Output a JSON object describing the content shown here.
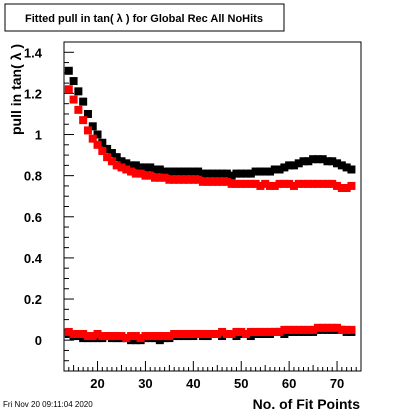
{
  "chart_data": {
    "type": "scatter",
    "title": "Fitted pull in tan( λ ) for Global Rec All NoHits",
    "xlabel": "No. of Fit Points",
    "ylabel": "pull in tan( λ )",
    "xlim": [
      13,
      75
    ],
    "ylim": [
      -0.15,
      1.45
    ],
    "xticks": [
      "20",
      "30",
      "40",
      "50",
      "60",
      "70"
    ],
    "yticks": [
      "0",
      "0.2",
      "0.4",
      "0.6",
      "0.8",
      "1",
      "1.2",
      "1.4"
    ],
    "timestamp": "Fri Nov 20 09:11:04 2020",
    "series": [
      {
        "color": "#000000",
        "x": [
          14,
          15,
          16,
          17,
          18,
          19,
          20,
          21,
          22,
          23,
          24,
          25,
          26,
          27,
          28,
          29,
          30,
          31,
          32,
          33,
          34,
          35,
          36,
          37,
          38,
          39,
          40,
          41,
          42,
          43,
          44,
          45,
          46,
          47,
          48,
          49,
          50,
          51,
          52,
          53,
          54,
          55,
          56,
          57,
          58,
          59,
          60,
          61,
          62,
          63,
          64,
          65,
          66,
          67,
          68,
          69,
          70,
          71,
          72,
          73
        ],
        "y": [
          1.31,
          1.26,
          1.21,
          1.16,
          1.1,
          1.04,
          1.0,
          0.96,
          0.93,
          0.91,
          0.89,
          0.87,
          0.86,
          0.85,
          0.85,
          0.84,
          0.84,
          0.84,
          0.83,
          0.83,
          0.82,
          0.82,
          0.82,
          0.82,
          0.82,
          0.82,
          0.82,
          0.82,
          0.81,
          0.81,
          0.81,
          0.81,
          0.81,
          0.81,
          0.8,
          0.81,
          0.81,
          0.81,
          0.81,
          0.82,
          0.82,
          0.82,
          0.82,
          0.83,
          0.83,
          0.84,
          0.85,
          0.85,
          0.86,
          0.87,
          0.87,
          0.88,
          0.88,
          0.88,
          0.87,
          0.87,
          0.86,
          0.85,
          0.84,
          0.83
        ]
      },
      {
        "color": "#ff0000",
        "x": [
          14,
          15,
          16,
          17,
          18,
          19,
          20,
          21,
          22,
          23,
          24,
          25,
          26,
          27,
          28,
          29,
          30,
          31,
          32,
          33,
          34,
          35,
          36,
          37,
          38,
          39,
          40,
          41,
          42,
          43,
          44,
          45,
          46,
          47,
          48,
          49,
          50,
          51,
          52,
          53,
          54,
          55,
          56,
          57,
          58,
          59,
          60,
          61,
          62,
          63,
          64,
          65,
          66,
          67,
          68,
          69,
          70,
          71,
          72,
          73
        ],
        "y": [
          1.22,
          1.17,
          1.12,
          1.07,
          1.02,
          0.98,
          0.95,
          0.92,
          0.89,
          0.87,
          0.85,
          0.84,
          0.83,
          0.82,
          0.81,
          0.81,
          0.8,
          0.8,
          0.79,
          0.79,
          0.79,
          0.78,
          0.78,
          0.78,
          0.78,
          0.78,
          0.78,
          0.78,
          0.77,
          0.77,
          0.77,
          0.77,
          0.77,
          0.77,
          0.76,
          0.76,
          0.76,
          0.76,
          0.76,
          0.76,
          0.75,
          0.76,
          0.75,
          0.75,
          0.76,
          0.76,
          0.76,
          0.75,
          0.76,
          0.76,
          0.76,
          0.76,
          0.76,
          0.76,
          0.76,
          0.76,
          0.75,
          0.74,
          0.74,
          0.75
        ]
      },
      {
        "color": "#000000",
        "x": [
          14,
          15,
          16,
          17,
          18,
          19,
          20,
          21,
          22,
          23,
          24,
          25,
          26,
          27,
          28,
          29,
          30,
          31,
          32,
          33,
          34,
          35,
          36,
          37,
          38,
          39,
          40,
          41,
          42,
          43,
          44,
          45,
          46,
          47,
          48,
          49,
          50,
          51,
          52,
          53,
          54,
          55,
          56,
          57,
          58,
          59,
          60,
          61,
          62,
          63,
          64,
          65,
          66,
          67,
          68,
          69,
          70,
          71,
          72,
          73
        ],
        "y": [
          0.03,
          0.02,
          0.02,
          0.01,
          0.01,
          0.01,
          0.01,
          0.01,
          0.02,
          0.01,
          0.01,
          0.01,
          0.01,
          0.0,
          0.0,
          0.0,
          0.01,
          0.01,
          0.01,
          0.0,
          0.01,
          0.01,
          0.02,
          0.02,
          0.02,
          0.02,
          0.02,
          0.03,
          0.02,
          0.02,
          0.03,
          0.03,
          0.02,
          0.03,
          0.03,
          0.02,
          0.03,
          0.03,
          0.02,
          0.03,
          0.03,
          0.03,
          0.03,
          0.04,
          0.04,
          0.03,
          0.04,
          0.04,
          0.04,
          0.04,
          0.04,
          0.04,
          0.05,
          0.05,
          0.05,
          0.05,
          0.05,
          0.05,
          0.04,
          0.04
        ]
      },
      {
        "color": "#ff0000",
        "x": [
          14,
          15,
          16,
          17,
          18,
          19,
          20,
          21,
          22,
          23,
          24,
          25,
          26,
          27,
          28,
          29,
          30,
          31,
          32,
          33,
          34,
          35,
          36,
          37,
          38,
          39,
          40,
          41,
          42,
          43,
          44,
          45,
          46,
          47,
          48,
          49,
          50,
          51,
          52,
          53,
          54,
          55,
          56,
          57,
          58,
          59,
          60,
          61,
          62,
          63,
          64,
          65,
          66,
          67,
          68,
          69,
          70,
          71,
          72,
          73
        ],
        "y": [
          0.04,
          0.03,
          0.03,
          0.03,
          0.02,
          0.02,
          0.03,
          0.02,
          0.02,
          0.02,
          0.02,
          0.02,
          0.01,
          0.02,
          0.02,
          0.01,
          0.02,
          0.02,
          0.02,
          0.02,
          0.02,
          0.02,
          0.03,
          0.03,
          0.03,
          0.03,
          0.03,
          0.03,
          0.03,
          0.03,
          0.03,
          0.03,
          0.04,
          0.03,
          0.03,
          0.04,
          0.04,
          0.03,
          0.04,
          0.04,
          0.04,
          0.04,
          0.04,
          0.04,
          0.04,
          0.05,
          0.05,
          0.05,
          0.05,
          0.05,
          0.05,
          0.05,
          0.06,
          0.06,
          0.06,
          0.06,
          0.06,
          0.05,
          0.05,
          0.05
        ]
      }
    ]
  }
}
